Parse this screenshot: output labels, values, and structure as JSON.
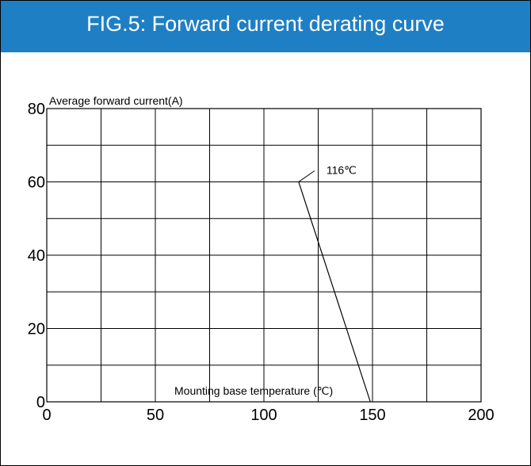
{
  "header": {
    "title": "FIG.5: Forward current derating curve",
    "background": "#1f7fc4"
  },
  "chart_data": {
    "type": "line",
    "title": "FIG.5: Forward current derating curve",
    "xlabel": "Mounting base temperature (℃)",
    "ylabel": "Average forward current(A)",
    "xlim": [
      0,
      200
    ],
    "ylim": [
      0,
      80
    ],
    "x_ticks": [
      0,
      50,
      100,
      150,
      200
    ],
    "y_ticks": [
      0,
      20,
      40,
      60,
      80
    ],
    "grid": true,
    "series": [
      {
        "x": [
          116,
          149
        ],
        "y": [
          60,
          0
        ]
      }
    ],
    "annotations": [
      {
        "text": "116℃",
        "x": 116,
        "y": 60
      }
    ]
  }
}
